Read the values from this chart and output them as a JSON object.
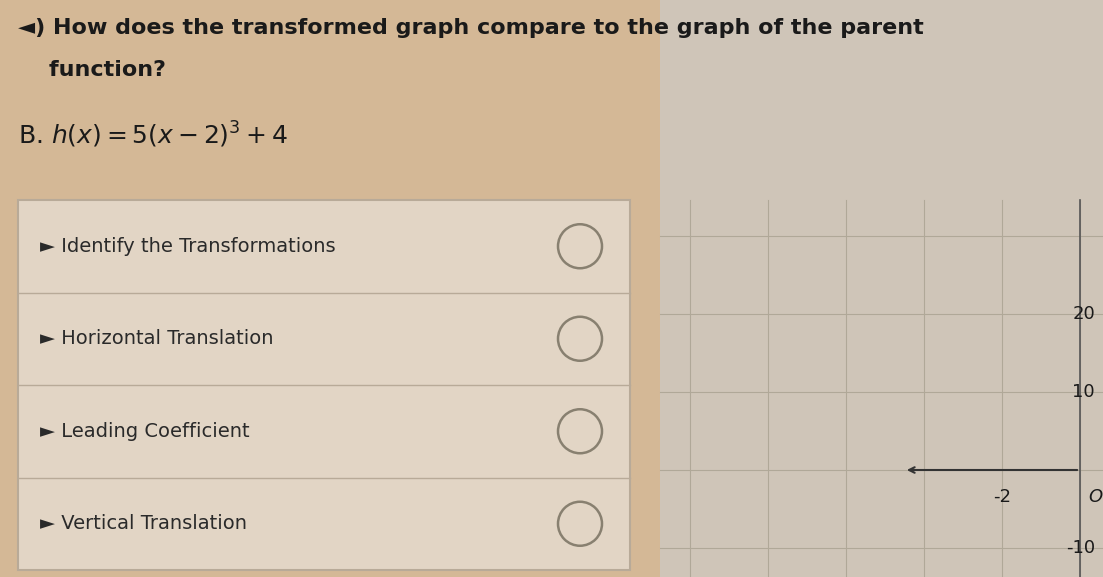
{
  "bg_color": "#d4b896",
  "title_line1": "◄) How does the transformed graph compare to the graph of the parent",
  "title_line2": "    function?",
  "equation": "B. h(x) = 5(x – 2)³ + 4",
  "rows": [
    "► Identify the Transformations",
    "► Horizontal Translation",
    "► Leading Coefficient",
    "► Vertical Translation"
  ],
  "table_bg": "#e2d5c5",
  "table_border": "#b8aa98",
  "graph_bg": "#cfc5b8",
  "graph_grid_color": "#b0a898",
  "title_fontsize": 16,
  "eq_fontsize": 18,
  "row_fontsize": 14,
  "circle_lw": 1.8,
  "circle_color": "#888070"
}
